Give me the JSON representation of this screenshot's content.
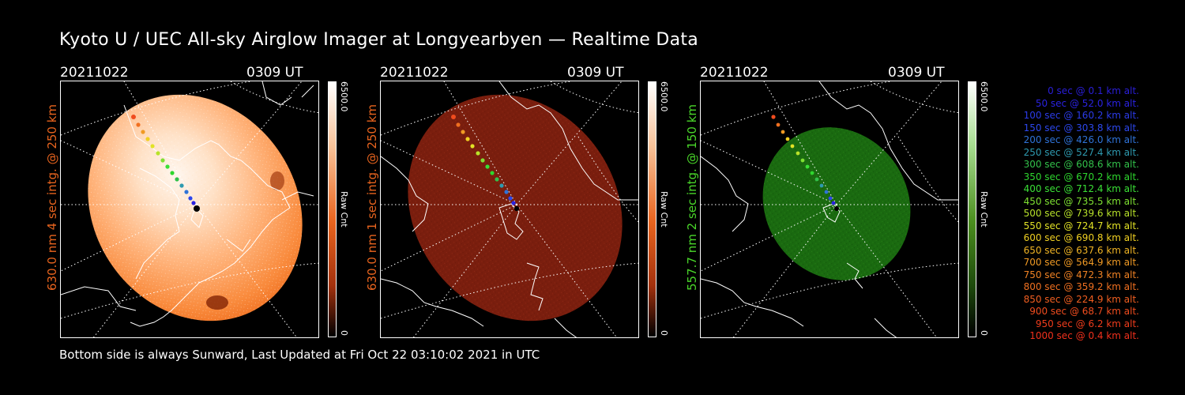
{
  "title": "Kyoto U / UEC All-sky Airglow Imager at Longyearbyen — Realtime Data",
  "footer": "Bottom side is always Sunward, Last Updated at Fri Oct 22 03:10:02 2021 in UTC",
  "colors": {
    "orange": "#e8641e",
    "green": "#4ad72a",
    "white": "#ffffff",
    "background": "#000000"
  },
  "panels": [
    {
      "date": "20211022",
      "time": "0309 UT",
      "ylabel": "630.0 nm 4 sec intg. @ 250 km",
      "ylabel_color": "#e8641e",
      "colorbar_max": "6500.0",
      "colorbar_min": "0",
      "colorbar_unit": "Raw Cnt",
      "colorbar_color": "#d24a08"
    },
    {
      "date": "20211022",
      "time": "0309 UT",
      "ylabel": "630.0 nm 1 sec intg. @ 250 km",
      "ylabel_color": "#e8641e",
      "colorbar_max": "6500.0",
      "colorbar_min": "0",
      "colorbar_unit": "Raw Cnt",
      "colorbar_color": "#d24a08"
    },
    {
      "date": "20211022",
      "time": "0309 UT",
      "ylabel": "557.7 nm 2 sec intg. @ 150 km",
      "ylabel_color": "#4ad72a",
      "colorbar_max": "6500.0",
      "colorbar_min": "0",
      "colorbar_unit": "Raw Cnt",
      "colorbar_color": "#4b8e1e"
    }
  ],
  "trajectory_legend": [
    {
      "time": "0 sec @",
      "alt": "0.1 km alt.",
      "color": "#2a1ed8"
    },
    {
      "time": "50 sec @",
      "alt": "52.0 km alt.",
      "color": "#2a22e0"
    },
    {
      "time": "100 sec @",
      "alt": "160.2 km alt.",
      "color": "#2b3be8"
    },
    {
      "time": "150 sec @",
      "alt": "303.8 km alt.",
      "color": "#2c47ec"
    },
    {
      "time": "200 sec @",
      "alt": "426.0 km alt.",
      "color": "#2f73d8"
    },
    {
      "time": "250 sec @",
      "alt": "527.4 km alt.",
      "color": "#2e9ab0"
    },
    {
      "time": "300 sec @",
      "alt": "608.6 km alt.",
      "color": "#32c04a"
    },
    {
      "time": "350 sec @",
      "alt": "670.2 km alt.",
      "color": "#2ed62e"
    },
    {
      "time": "400 sec @",
      "alt": "712.4 km alt.",
      "color": "#3ae036"
    },
    {
      "time": "450 sec @",
      "alt": "735.5 km alt.",
      "color": "#7ee032"
    },
    {
      "time": "500 sec @",
      "alt": "739.6 km alt.",
      "color": "#b8e22a"
    },
    {
      "time": "550 sec @",
      "alt": "724.7 km alt.",
      "color": "#e2e226"
    },
    {
      "time": "600 sec @",
      "alt": "690.8 km alt.",
      "color": "#f0d022"
    },
    {
      "time": "650 sec @",
      "alt": "637.6 km alt.",
      "color": "#f0b424"
    },
    {
      "time": "700 sec @",
      "alt": "564.9 km alt.",
      "color": "#f09a24"
    },
    {
      "time": "750 sec @",
      "alt": "472.3 km alt.",
      "color": "#f08224"
    },
    {
      "time": "800 sec @",
      "alt": "359.2 km alt.",
      "color": "#f07020"
    },
    {
      "time": "850 sec @",
      "alt": "224.9 km alt.",
      "color": "#f05e20"
    },
    {
      "time": "900 sec @",
      "alt": "68.7 km alt.",
      "color": "#f04c1e"
    },
    {
      "time": "950 sec @",
      "alt": "6.2 km alt.",
      "color": "#f03c1c"
    },
    {
      "time": "1000 sec @",
      "alt": "0.4 km alt.",
      "color": "#f0301c"
    }
  ]
}
